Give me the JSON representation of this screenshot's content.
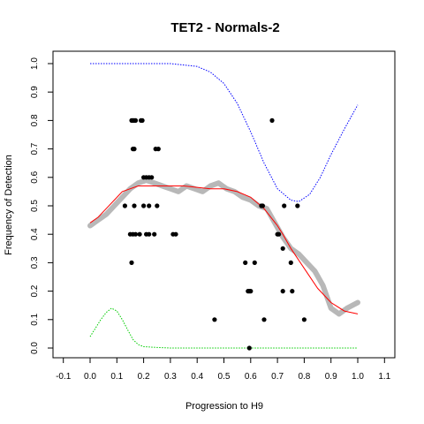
{
  "chart_data": {
    "type": "scatter",
    "title": "TET2 - Normals-2",
    "xlabel": "Progression to H9",
    "ylabel": "Frequency of Detection",
    "xlim": [
      -0.1,
      1.1
    ],
    "ylim": [
      0.0,
      1.0
    ],
    "x_ticks": [
      "-0.1",
      "0.0",
      "0.1",
      "0.2",
      "0.3",
      "0.4",
      "0.5",
      "0.6",
      "0.7",
      "0.8",
      "0.9",
      "1.0",
      "1.1"
    ],
    "y_ticks": [
      "0.0",
      "0.1",
      "0.2",
      "0.3",
      "0.4",
      "0.5",
      "0.6",
      "0.7",
      "0.8",
      "0.9",
      "1.0"
    ],
    "grid": false,
    "colors": {
      "points": "#000000",
      "smooth_band": "#b8b8b8",
      "fit": "#ff0000",
      "upper": "#0000ff",
      "lower": "#00cc00"
    },
    "series": [
      {
        "kind": "scatter",
        "x": [
          0.155,
          0.16,
          0.165,
          0.17,
          0.19,
          0.195,
          0.16,
          0.165,
          0.245,
          0.255,
          0.2,
          0.21,
          0.22,
          0.23,
          0.13,
          0.165,
          0.2,
          0.22,
          0.25,
          0.15,
          0.16,
          0.17,
          0.185,
          0.21,
          0.22,
          0.24,
          0.31,
          0.32,
          0.155,
          0.465,
          0.58,
          0.59,
          0.595,
          0.6,
          0.615,
          0.64,
          0.645,
          0.65,
          0.68,
          0.7,
          0.705,
          0.72,
          0.725,
          0.755,
          0.775,
          0.8,
          0.595,
          0.72,
          0.75
        ],
        "y": [
          0.8,
          0.8,
          0.8,
          0.8,
          0.8,
          0.8,
          0.7,
          0.7,
          0.7,
          0.7,
          0.6,
          0.6,
          0.6,
          0.6,
          0.5,
          0.5,
          0.5,
          0.5,
          0.5,
          0.4,
          0.4,
          0.4,
          0.4,
          0.4,
          0.4,
          0.4,
          0.4,
          0.4,
          0.3,
          0.1,
          0.3,
          0.2,
          0.2,
          0.2,
          0.3,
          0.5,
          0.5,
          0.1,
          0.8,
          0.4,
          0.4,
          0.2,
          0.5,
          0.2,
          0.5,
          0.1,
          0.0,
          0.35,
          0.3
        ]
      },
      {
        "kind": "band",
        "x": [
          0.0,
          0.03,
          0.06,
          0.09,
          0.12,
          0.15,
          0.18,
          0.21,
          0.24,
          0.27,
          0.3,
          0.33,
          0.36,
          0.39,
          0.42,
          0.45,
          0.48,
          0.51,
          0.54,
          0.57,
          0.6,
          0.63,
          0.66,
          0.69,
          0.72,
          0.75,
          0.78,
          0.81,
          0.84,
          0.87,
          0.9,
          0.93,
          0.96,
          1.0
        ],
        "y": [
          0.43,
          0.45,
          0.47,
          0.5,
          0.53,
          0.56,
          0.58,
          0.59,
          0.58,
          0.57,
          0.56,
          0.55,
          0.57,
          0.56,
          0.55,
          0.57,
          0.58,
          0.56,
          0.55,
          0.53,
          0.52,
          0.5,
          0.49,
          0.44,
          0.39,
          0.35,
          0.33,
          0.3,
          0.27,
          0.22,
          0.14,
          0.12,
          0.14,
          0.16
        ]
      },
      {
        "kind": "line",
        "x": [
          0.0,
          0.03,
          0.06,
          0.09,
          0.12,
          0.15,
          0.18,
          0.21,
          0.25,
          0.3,
          0.35,
          0.4,
          0.45,
          0.5,
          0.55,
          0.6,
          0.65,
          0.7,
          0.72,
          0.75,
          0.8,
          0.85,
          0.9,
          0.95,
          1.0
        ],
        "y": [
          0.44,
          0.46,
          0.49,
          0.52,
          0.55,
          0.56,
          0.57,
          0.57,
          0.57,
          0.57,
          0.57,
          0.565,
          0.56,
          0.56,
          0.55,
          0.53,
          0.49,
          0.43,
          0.4,
          0.35,
          0.28,
          0.21,
          0.16,
          0.13,
          0.12
        ]
      },
      {
        "kind": "line",
        "dash": true,
        "x": [
          0.0,
          0.1,
          0.2,
          0.3,
          0.4,
          0.45,
          0.5,
          0.55,
          0.6,
          0.65,
          0.7,
          0.75,
          0.78,
          0.82,
          0.86,
          0.9,
          0.95,
          1.0
        ],
        "y": [
          1.0,
          1.0,
          1.0,
          1.0,
          0.99,
          0.97,
          0.93,
          0.86,
          0.76,
          0.65,
          0.56,
          0.52,
          0.515,
          0.54,
          0.6,
          0.68,
          0.77,
          0.855
        ]
      },
      {
        "kind": "line",
        "dash": true,
        "x": [
          0.0,
          0.02,
          0.04,
          0.06,
          0.08,
          0.1,
          0.12,
          0.14,
          0.16,
          0.18,
          0.2,
          0.25,
          0.3,
          0.4,
          0.5,
          0.6,
          0.7,
          0.8,
          0.9,
          1.0
        ],
        "y": [
          0.04,
          0.07,
          0.1,
          0.125,
          0.14,
          0.13,
          0.1,
          0.065,
          0.03,
          0.012,
          0.005,
          0.002,
          0.0,
          0.0,
          0.0,
          0.0,
          0.0,
          0.0,
          0.0,
          0.0
        ]
      }
    ]
  }
}
